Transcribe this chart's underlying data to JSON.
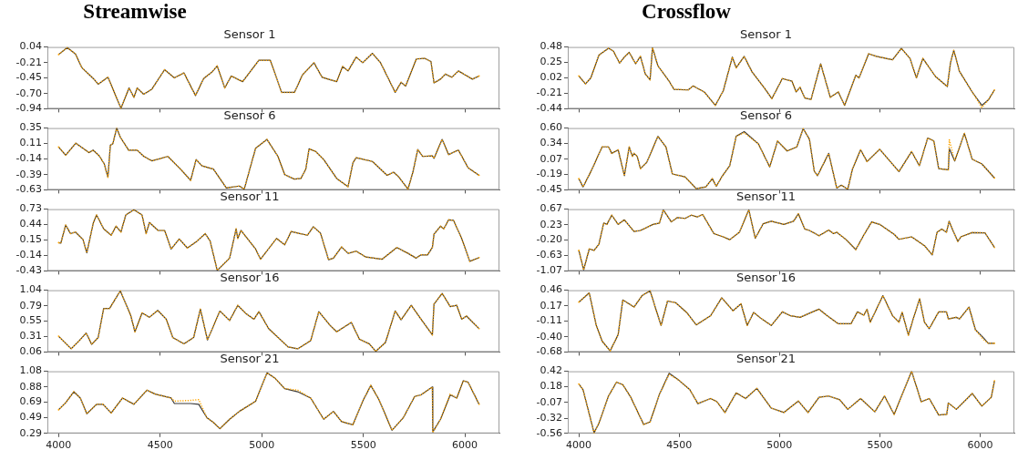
{
  "chart_data": [
    {
      "type": "line",
      "title": "Streamwise",
      "subtitle": "Sensor 1",
      "x": [
        4000,
        4043,
        4083,
        4115,
        4171,
        4195,
        4243,
        4307,
        4347,
        4371,
        4387,
        4419,
        4459,
        4522,
        4570,
        4617,
        4674,
        4714,
        4754,
        4781,
        4818,
        4850,
        4906,
        4986,
        5042,
        5098,
        5161,
        5201,
        5257,
        5297,
        5369,
        5398,
        5425,
        5465,
        5497,
        5545,
        5585,
        5657,
        5686,
        5708,
        5761,
        5801,
        5833,
        5848,
        5880,
        5904,
        5936,
        5968,
        6037,
        6070
      ],
      "series": [
        {
          "color": "#3a3a3a",
          "values": [
            -0.08,
            0.03,
            -0.07,
            -0.29,
            -0.46,
            -0.55,
            -0.44,
            -0.93,
            -0.61,
            -0.76,
            -0.61,
            -0.71,
            -0.63,
            -0.32,
            -0.45,
            -0.37,
            -0.73,
            -0.46,
            -0.36,
            -0.26,
            -0.61,
            -0.42,
            -0.51,
            -0.17,
            -0.17,
            -0.68,
            -0.68,
            -0.4,
            -0.21,
            -0.44,
            -0.51,
            -0.27,
            -0.34,
            -0.12,
            -0.21,
            -0.06,
            -0.21,
            -0.68,
            -0.52,
            -0.58,
            -0.15,
            -0.14,
            -0.19,
            -0.53,
            -0.47,
            -0.39,
            -0.44,
            -0.34,
            -0.47,
            -0.42
          ]
        },
        {
          "color": "#ffa500",
          "line_style": "dotted",
          "values": [
            -0.08,
            0.03,
            -0.07,
            -0.29,
            -0.46,
            -0.55,
            -0.44,
            -0.93,
            -0.61,
            -0.76,
            -0.61,
            -0.71,
            -0.63,
            -0.32,
            -0.45,
            -0.37,
            -0.73,
            -0.46,
            -0.36,
            -0.26,
            -0.61,
            -0.42,
            -0.51,
            -0.17,
            -0.17,
            -0.68,
            -0.68,
            -0.4,
            -0.21,
            -0.44,
            -0.51,
            -0.27,
            -0.34,
            -0.12,
            -0.21,
            -0.06,
            -0.21,
            -0.68,
            -0.52,
            -0.58,
            -0.15,
            -0.14,
            -0.19,
            -0.53,
            -0.47,
            -0.39,
            -0.44,
            -0.34,
            -0.47,
            -0.42
          ]
        }
      ],
      "xlim": [
        3945,
        6170
      ],
      "xticks": [
        4000,
        4500,
        5000,
        5500,
        6000
      ],
      "ylim": [
        -0.94,
        0.04
      ],
      "yticks": [
        0.04,
        -0.21,
        -0.45,
        {
          "value": -0.7,
          "label": "-0.70"
        },
        -0.94
      ],
      "tick_labels": "y"
    },
    {
      "type": "line",
      "title": "Sensor 6",
      "x": [
        4000,
        4035,
        4085,
        4150,
        4170,
        4200,
        4225,
        4243,
        4255,
        4267,
        4286,
        4305,
        4345,
        4387,
        4420,
        4459,
        4538,
        4600,
        4650,
        4677,
        4706,
        4762,
        4826,
        4890,
        4914,
        4950,
        4970,
        5026,
        5080,
        5113,
        5161,
        5193,
        5217,
        5233,
        5265,
        5305,
        5369,
        5425,
        5449,
        5465,
        5545,
        5617,
        5649,
        5673,
        5720,
        5744,
        5768,
        5792,
        5840,
        5848,
        5888,
        5920,
        5968,
        6016,
        6070
      ],
      "series": [
        {
          "color": "#3a3a3a",
          "values": [
            0.05,
            -0.08,
            0.11,
            -0.04,
            0.0,
            -0.09,
            -0.22,
            -0.43,
            0.08,
            0.1,
            0.35,
            0.2,
            0.0,
            0.0,
            -0.1,
            -0.17,
            -0.1,
            -0.3,
            -0.48,
            -0.15,
            -0.25,
            -0.3,
            -0.6,
            -0.57,
            -0.62,
            -0.2,
            0.03,
            0.17,
            -0.1,
            -0.39,
            -0.46,
            -0.45,
            -0.3,
            0.02,
            -0.02,
            -0.15,
            -0.45,
            -0.58,
            -0.2,
            -0.12,
            -0.18,
            -0.4,
            -0.35,
            -0.42,
            -0.62,
            -0.35,
            0.01,
            -0.1,
            -0.09,
            -0.13,
            0.17,
            -0.07,
            0.0,
            -0.28,
            -0.4
          ]
        },
        {
          "color": "#ffa500",
          "line_style": "dotted",
          "values": [
            0.05,
            -0.08,
            0.11,
            -0.04,
            0.0,
            -0.09,
            -0.22,
            -0.43,
            0.08,
            0.1,
            0.35,
            0.2,
            0.0,
            0.0,
            -0.1,
            -0.17,
            -0.1,
            -0.3,
            -0.48,
            -0.15,
            -0.25,
            -0.3,
            -0.6,
            -0.57,
            -0.62,
            -0.2,
            0.03,
            0.17,
            -0.1,
            -0.39,
            -0.46,
            -0.45,
            -0.3,
            0.02,
            -0.02,
            -0.15,
            -0.45,
            -0.58,
            -0.2,
            -0.12,
            -0.18,
            -0.4,
            -0.35,
            -0.42,
            -0.62,
            -0.35,
            0.01,
            -0.1,
            -0.09,
            -0.13,
            0.17,
            -0.07,
            0.0,
            -0.28,
            -0.4
          ]
        }
      ],
      "xlim": [
        3945,
        6170
      ],
      "xticks": [
        4000,
        4500,
        5000,
        5500,
        6000
      ],
      "ylim": [
        -0.63,
        0.35
      ],
      "yticks": [
        0.35,
        0.11,
        -0.14,
        -0.39,
        -0.63
      ],
      "tick_labels": "y"
    },
    {
      "type": "line",
      "title": "Sensor 11",
      "x": [
        4000,
        4011,
        4035,
        4059,
        4083,
        4120,
        4139,
        4171,
        4187,
        4222,
        4259,
        4283,
        4307,
        4331,
        4371,
        4411,
        4431,
        4447,
        4490,
        4522,
        4554,
        4594,
        4634,
        4682,
        4722,
        4746,
        4781,
        4842,
        4874,
        4882,
        4898,
        4970,
        4994,
        5073,
        5113,
        5145,
        5177,
        5225,
        5254,
        5289,
        5329,
        5353,
        5393,
        5425,
        5465,
        5513,
        5593,
        5665,
        5720,
        5760,
        5784,
        5816,
        5840,
        5848,
        5880,
        5896,
        5920,
        5944,
        5984,
        6024,
        6070
      ],
      "series": [
        {
          "color": "#3a3a3a",
          "values": [
            0.1,
            0.09,
            0.43,
            0.27,
            0.3,
            0.16,
            -0.09,
            0.47,
            0.62,
            0.36,
            0.24,
            0.41,
            0.3,
            0.62,
            0.72,
            0.62,
            0.27,
            0.48,
            0.33,
            0.33,
            -0.02,
            0.17,
            0.0,
            0.13,
            0.27,
            0.13,
            -0.42,
            -0.19,
            0.36,
            0.18,
            0.33,
            -0.02,
            -0.21,
            0.18,
            0.06,
            0.31,
            0.28,
            0.24,
            0.4,
            0.28,
            -0.22,
            -0.19,
            0.02,
            -0.1,
            -0.06,
            -0.17,
            -0.21,
            0.01,
            -0.1,
            -0.19,
            -0.13,
            -0.13,
            0.01,
            0.26,
            0.41,
            0.36,
            0.53,
            0.52,
            0.18,
            -0.25,
            -0.18
          ]
        },
        {
          "color": "#ffa500",
          "line_style": "dotted",
          "values": [
            0.1,
            0.09,
            0.43,
            0.27,
            0.3,
            0.16,
            -0.09,
            0.47,
            0.62,
            0.36,
            0.24,
            0.41,
            0.3,
            0.62,
            0.72,
            0.62,
            0.27,
            0.48,
            0.33,
            0.33,
            -0.02,
            0.17,
            0.0,
            0.13,
            0.27,
            0.13,
            -0.42,
            -0.19,
            0.36,
            0.18,
            0.33,
            -0.02,
            -0.21,
            0.18,
            0.06,
            0.31,
            0.28,
            0.24,
            0.4,
            0.28,
            -0.22,
            -0.19,
            0.02,
            -0.1,
            -0.06,
            -0.17,
            -0.21,
            0.01,
            -0.1,
            -0.19,
            -0.13,
            -0.13,
            0.01,
            0.26,
            0.41,
            0.36,
            0.53,
            0.52,
            0.18,
            -0.25,
            -0.18
          ]
        }
      ],
      "xlim": [
        3945,
        6170
      ],
      "xticks": [
        4000,
        4500,
        5000,
        5500,
        6000
      ],
      "ylim": [
        -0.43,
        0.73
      ],
      "yticks": [
        0.73,
        0.44,
        0.15,
        -0.14,
        -0.43
      ],
      "tick_labels": "y"
    },
    {
      "type": "line",
      "title": "Sensor 16",
      "x": [
        4000,
        4062,
        4099,
        4136,
        4163,
        4195,
        4222,
        4251,
        4304,
        4355,
        4376,
        4411,
        4447,
        4488,
        4530,
        4562,
        4617,
        4665,
        4698,
        4733,
        4770,
        4794,
        4842,
        4882,
        4922,
        4962,
        4986,
        5034,
        5130,
        5177,
        5241,
        5281,
        5337,
        5369,
        5441,
        5481,
        5529,
        5561,
        5609,
        5657,
        5686,
        5736,
        5784,
        5840,
        5848,
        5888,
        5928,
        5960,
        5984,
        6008,
        6070
      ],
      "series": [
        {
          "color": "#3a3a3a",
          "values": [
            0.31,
            0.11,
            0.23,
            0.36,
            0.18,
            0.29,
            0.75,
            0.75,
            1.03,
            0.64,
            0.38,
            0.68,
            0.61,
            0.72,
            0.58,
            0.29,
            0.19,
            0.29,
            0.74,
            0.25,
            0.53,
            0.71,
            0.56,
            0.8,
            0.67,
            0.58,
            0.7,
            0.43,
            0.14,
            0.11,
            0.24,
            0.7,
            0.48,
            0.38,
            0.53,
            0.26,
            0.19,
            0.07,
            0.21,
            0.71,
            0.57,
            0.8,
            0.58,
            0.33,
            0.82,
            0.99,
            0.78,
            0.8,
            0.58,
            0.63,
            0.43
          ]
        },
        {
          "color": "#ffa500",
          "line_style": "dotted",
          "values": [
            0.31,
            0.11,
            0.23,
            0.36,
            0.18,
            0.29,
            0.75,
            0.75,
            1.03,
            0.64,
            0.38,
            0.68,
            0.61,
            0.72,
            0.58,
            0.29,
            0.19,
            0.29,
            0.74,
            0.25,
            0.53,
            0.71,
            0.56,
            0.8,
            0.67,
            0.58,
            0.7,
            0.43,
            0.14,
            0.11,
            0.24,
            0.7,
            0.48,
            0.38,
            0.53,
            0.26,
            0.19,
            0.07,
            0.21,
            0.71,
            0.57,
            0.8,
            0.58,
            0.33,
            0.82,
            0.99,
            0.78,
            0.8,
            0.58,
            0.63,
            0.43
          ]
        }
      ],
      "xlim": [
        3945,
        6170
      ],
      "xticks": [
        4000,
        4500,
        5000,
        5500,
        6000
      ],
      "ylim": [
        0.06,
        1.04
      ],
      "yticks": [
        1.04,
        0.79,
        0.55,
        0.31,
        0.06
      ],
      "tick_labels": "y"
    },
    {
      "type": "line",
      "title": "Sensor 21",
      "x": [
        4000,
        4035,
        4075,
        4107,
        4139,
        4187,
        4219,
        4259,
        4315,
        4371,
        4435,
        4475,
        4554,
        4570,
        4649,
        4690,
        4730,
        4762,
        4794,
        4842,
        4890,
        4970,
        5026,
        5066,
        5113,
        5177,
        5241,
        5305,
        5353,
        5393,
        5449,
        5497,
        5537,
        5577,
        5641,
        5697,
        5753,
        5784,
        5840,
        5842,
        5880,
        5928,
        5960,
        5992,
        6016,
        6070
      ],
      "series": [
        {
          "color": "#3a3a3a",
          "values": [
            0.59,
            0.68,
            0.82,
            0.74,
            0.54,
            0.66,
            0.66,
            0.55,
            0.74,
            0.66,
            0.84,
            0.79,
            0.74,
            0.67,
            0.67,
            0.66,
            0.49,
            0.43,
            0.35,
            0.47,
            0.57,
            0.7,
            1.06,
            0.99,
            0.86,
            0.82,
            0.74,
            0.47,
            0.57,
            0.44,
            0.4,
            0.7,
            0.9,
            0.72,
            0.33,
            0.49,
            0.76,
            0.78,
            0.88,
            0.31,
            0.47,
            0.78,
            0.74,
            0.96,
            0.94,
            0.66
          ]
        },
        {
          "color": "#ffa500",
          "line_style": "dotted",
          "values": [
            0.59,
            0.68,
            0.82,
            0.74,
            0.54,
            0.66,
            0.66,
            0.55,
            0.74,
            0.66,
            0.84,
            0.79,
            0.74,
            0.7,
            0.71,
            0.72,
            0.49,
            0.43,
            0.35,
            0.47,
            0.57,
            0.7,
            1.06,
            0.99,
            0.86,
            0.84,
            0.74,
            0.47,
            0.57,
            0.44,
            0.4,
            0.7,
            0.9,
            0.72,
            0.33,
            0.49,
            0.76,
            0.78,
            0.88,
            0.3,
            0.47,
            0.79,
            0.74,
            0.96,
            0.94,
            0.66
          ]
        }
      ],
      "xlim": [
        3945,
        6170
      ],
      "xticks": [
        4000,
        4500,
        5000,
        5500,
        6000
      ],
      "ylim": [
        0.29,
        1.08
      ],
      "yticks": [
        1.08,
        0.88,
        0.69,
        0.49,
        0.29
      ]
    },
    {
      "type": "line",
      "title": "Crossflow",
      "subtitle": "Sensor 1",
      "x": [
        4000,
        4033,
        4060,
        4100,
        4148,
        4172,
        4203,
        4227,
        4251,
        4283,
        4307,
        4331,
        4355,
        4367,
        4394,
        4450,
        4474,
        4545,
        4569,
        4625,
        4680,
        4720,
        4765,
        4784,
        4824,
        4863,
        4927,
        4962,
        5014,
        5062,
        5083,
        5102,
        5126,
        5157,
        5205,
        5253,
        5293,
        5324,
        5380,
        5396,
        5444,
        5483,
        5563,
        5607,
        5650,
        5682,
        5714,
        5777,
        5836,
        5852,
        5868,
        5882,
        5896,
        5960,
        6008,
        6040,
        6071
      ],
      "series": [
        {
          "color": "#3a3a3a",
          "values": [
            0.05,
            -0.07,
            0.02,
            0.36,
            0.46,
            0.42,
            0.24,
            0.33,
            0.4,
            0.23,
            0.34,
            0.08,
            -0.01,
            0.47,
            0.2,
            -0.03,
            -0.15,
            -0.16,
            -0.1,
            -0.19,
            -0.39,
            -0.17,
            0.33,
            0.17,
            0.34,
            0.11,
            -0.14,
            -0.29,
            0.01,
            -0.03,
            -0.19,
            -0.12,
            -0.28,
            -0.3,
            0.23,
            -0.27,
            -0.19,
            -0.39,
            0.06,
            0.02,
            0.38,
            0.34,
            0.29,
            0.46,
            0.31,
            0.02,
            0.31,
            0.04,
            -0.11,
            0.25,
            0.43,
            0.28,
            0.12,
            -0.19,
            -0.39,
            -0.31,
            -0.16
          ]
        },
        {
          "color": "#ffa500",
          "line_style": "dotted",
          "values": [
            0.05,
            -0.07,
            0.02,
            0.36,
            0.46,
            0.42,
            0.24,
            0.33,
            0.4,
            0.23,
            0.34,
            0.08,
            -0.01,
            0.47,
            0.2,
            -0.03,
            -0.15,
            -0.16,
            -0.1,
            -0.19,
            -0.39,
            -0.17,
            0.33,
            0.17,
            0.34,
            0.11,
            -0.14,
            -0.29,
            0.01,
            -0.03,
            -0.19,
            -0.12,
            -0.28,
            -0.3,
            0.23,
            -0.27,
            -0.19,
            -0.39,
            0.06,
            0.02,
            0.38,
            0.34,
            0.29,
            0.46,
            0.31,
            0.02,
            0.31,
            0.04,
            -0.11,
            0.25,
            0.43,
            0.28,
            0.12,
            -0.19,
            -0.42,
            -0.31,
            -0.16
          ]
        }
      ],
      "xlim": [
        3945,
        6170
      ],
      "xticks": [
        4000,
        4500,
        5000,
        5500,
        6000
      ],
      "ylim": [
        -0.44,
        0.48
      ],
      "yticks": [
        0.48,
        0.25,
        0.02,
        -0.21,
        -0.44
      ],
      "tick_labels": "y"
    },
    {
      "type": "line",
      "title": "Sensor 6",
      "x": [
        4000,
        4021,
        4060,
        4116,
        4148,
        4164,
        4196,
        4227,
        4251,
        4267,
        4275,
        4291,
        4307,
        4339,
        4394,
        4434,
        4466,
        4529,
        4585,
        4633,
        4665,
        4685,
        4712,
        4752,
        4784,
        4824,
        4895,
        4951,
        4990,
        5038,
        5086,
        5118,
        5149,
        5173,
        5189,
        5245,
        5285,
        5308,
        5340,
        5364,
        5404,
        5436,
        5499,
        5595,
        5658,
        5697,
        5738,
        5769,
        5793,
        5841,
        5846,
        5873,
        5921,
        5960,
        6008,
        6040,
        6071
      ],
      "series": [
        {
          "color": "#3a3a3a",
          "values": [
            -0.26,
            -0.4,
            -0.14,
            0.28,
            0.28,
            0.17,
            0.23,
            -0.21,
            0.28,
            0.12,
            0.17,
            0.12,
            -0.09,
            0.02,
            0.46,
            0.28,
            -0.18,
            -0.23,
            -0.43,
            -0.4,
            -0.26,
            -0.39,
            -0.23,
            -0.04,
            0.46,
            0.54,
            0.33,
            -0.06,
            0.38,
            0.21,
            0.28,
            0.59,
            0.41,
            -0.13,
            -0.21,
            0.17,
            -0.42,
            -0.37,
            -0.44,
            -0.09,
            0.23,
            0.03,
            0.24,
            -0.14,
            0.2,
            -0.04,
            0.43,
            0.38,
            -0.09,
            -0.11,
            0.25,
            0.04,
            0.51,
            0.07,
            -0.01,
            -0.13,
            -0.25
          ]
        },
        {
          "color": "#ffa500",
          "line_style": "dotted",
          "values": [
            -0.26,
            -0.4,
            -0.14,
            0.28,
            0.28,
            0.17,
            0.23,
            -0.21,
            0.28,
            0.12,
            0.17,
            0.12,
            -0.09,
            0.02,
            0.46,
            0.28,
            -0.18,
            -0.23,
            -0.43,
            -0.4,
            -0.26,
            -0.39,
            -0.23,
            -0.04,
            0.46,
            0.52,
            0.33,
            -0.06,
            0.38,
            0.21,
            0.28,
            0.59,
            0.41,
            -0.13,
            -0.21,
            0.17,
            -0.42,
            -0.37,
            -0.44,
            -0.09,
            0.23,
            0.03,
            0.24,
            -0.14,
            0.2,
            -0.04,
            0.43,
            0.38,
            -0.09,
            -0.11,
            0.4,
            0.04,
            0.51,
            0.07,
            -0.01,
            -0.13,
            -0.25
          ]
        }
      ],
      "xlim": [
        3945,
        6170
      ],
      "xticks": [
        4000,
        4500,
        5000,
        5500,
        6000
      ],
      "ylim": [
        -0.45,
        0.6
      ],
      "yticks": [
        {
          "value": 0.6,
          "label": "0.60"
        },
        0.34,
        0.07,
        -0.19,
        -0.45
      ],
      "tick_labels": "y"
    },
    {
      "type": "line",
      "title": "Sensor 11",
      "x": [
        4000,
        4024,
        4052,
        4076,
        4100,
        4124,
        4140,
        4164,
        4196,
        4227,
        4275,
        4307,
        4370,
        4402,
        4421,
        4461,
        4490,
        4529,
        4561,
        4590,
        4617,
        4673,
        4720,
        4752,
        4800,
        4847,
        4879,
        4919,
        4959,
        5022,
        5070,
        5094,
        5126,
        5149,
        5197,
        5245,
        5269,
        5285,
        5332,
        5380,
        5420,
        5459,
        5499,
        5571,
        5595,
        5658,
        5722,
        5761,
        5785,
        5808,
        5832,
        5845,
        5864,
        5888,
        5904,
        5960,
        6024,
        6071
      ],
      "series": [
        {
          "color": "#3a3a3a",
          "values": [
            -0.49,
            -1.04,
            -0.45,
            -0.49,
            -0.32,
            0.28,
            0.24,
            0.5,
            0.24,
            0.37,
            0.04,
            0.07,
            0.24,
            0.28,
            0.65,
            0.31,
            0.43,
            0.41,
            0.5,
            0.45,
            0.52,
            -0.02,
            -0.11,
            -0.19,
            0.02,
            0.65,
            -0.15,
            0.26,
            0.33,
            0.24,
            0.33,
            0.54,
            0.11,
            0.07,
            -0.08,
            0.08,
            -0.02,
            0.02,
            -0.19,
            -0.47,
            -0.06,
            0.31,
            0.24,
            -0.04,
            -0.18,
            -0.11,
            -0.36,
            -0.62,
            0.02,
            0.11,
            0.02,
            0.33,
            0.07,
            -0.24,
            -0.11,
            0.01,
            0.0,
            -0.41
          ]
        },
        {
          "color": "#ffa500",
          "line_style": "dotted",
          "values": [
            -0.49,
            -1.04,
            -0.45,
            -0.49,
            -0.32,
            0.28,
            0.24,
            0.5,
            0.24,
            0.37,
            0.04,
            0.07,
            0.24,
            0.28,
            0.65,
            0.31,
            0.43,
            0.41,
            0.5,
            0.45,
            0.52,
            -0.02,
            -0.11,
            -0.19,
            0.02,
            0.65,
            -0.15,
            0.26,
            0.33,
            0.24,
            0.33,
            0.54,
            0.11,
            0.07,
            -0.08,
            0.08,
            -0.02,
            0.02,
            -0.19,
            -0.47,
            -0.06,
            0.31,
            0.24,
            -0.04,
            -0.18,
            -0.11,
            -0.36,
            -0.62,
            0.02,
            0.11,
            0.02,
            0.33,
            0.07,
            -0.24,
            -0.11,
            0.01,
            0.0,
            -0.41
          ]
        }
      ],
      "xlim": [
        3945,
        6170
      ],
      "xticks": [
        4000,
        4500,
        5000,
        5500,
        6000
      ],
      "ylim": [
        -1.07,
        0.67
      ],
      "yticks": [
        0.67,
        0.23,
        {
          "value": -0.2,
          "label": "-0.20"
        },
        -0.63,
        -1.07
      ],
      "tick_labels": "y"
    },
    {
      "type": "line",
      "title": "Sensor 16",
      "x": [
        4000,
        4052,
        4087,
        4116,
        4156,
        4196,
        4219,
        4275,
        4315,
        4355,
        4394,
        4410,
        4442,
        4482,
        4537,
        4585,
        4657,
        4712,
        4768,
        4808,
        4839,
        4871,
        4911,
        4959,
        5014,
        5054,
        5102,
        5197,
        5237,
        5293,
        5356,
        5388,
        5420,
        5436,
        5452,
        5515,
        5563,
        5595,
        5611,
        5642,
        5666,
        5698,
        5722,
        5746,
        5793,
        5832,
        5841,
        5880,
        5897,
        5944,
        5976,
        6016,
        6040,
        6071
      ],
      "series": [
        {
          "color": "#3a3a3a",
          "values": [
            0.24,
            0.41,
            -0.19,
            -0.48,
            -0.66,
            -0.36,
            0.28,
            0.15,
            0.36,
            0.45,
            -0.01,
            -0.19,
            0.26,
            0.23,
            0.05,
            -0.18,
            -0.01,
            0.32,
            0.08,
            0.21,
            -0.19,
            0.05,
            -0.07,
            -0.19,
            0.06,
            -0.01,
            -0.04,
            0.11,
            -0.01,
            -0.16,
            -0.16,
            0.06,
            0.0,
            0.11,
            -0.13,
            0.36,
            -0.01,
            -0.13,
            0.05,
            -0.37,
            -0.07,
            0.3,
            -0.13,
            -0.25,
            0.06,
            0.06,
            -0.07,
            -0.04,
            -0.07,
            0.15,
            -0.27,
            -0.42,
            -0.52,
            -0.52
          ]
        },
        {
          "color": "#ffa500",
          "line_style": "dotted",
          "values": [
            0.24,
            0.41,
            -0.19,
            -0.48,
            -0.66,
            -0.36,
            0.28,
            0.15,
            0.36,
            0.45,
            -0.01,
            -0.19,
            0.26,
            0.23,
            0.05,
            -0.18,
            -0.01,
            0.32,
            0.08,
            0.21,
            -0.19,
            0.05,
            -0.07,
            -0.19,
            0.06,
            -0.01,
            -0.04,
            0.11,
            -0.01,
            -0.16,
            -0.16,
            0.06,
            0.0,
            0.11,
            -0.13,
            0.36,
            -0.01,
            -0.13,
            0.05,
            -0.37,
            -0.07,
            0.3,
            -0.13,
            -0.25,
            0.06,
            0.06,
            -0.07,
            -0.04,
            -0.07,
            0.15,
            -0.27,
            -0.45,
            -0.52,
            -0.52
          ]
        }
      ],
      "xlim": [
        3945,
        6170
      ],
      "xticks": [
        4000,
        4500,
        5000,
        5500,
        6000
      ],
      "ylim": [
        -0.68,
        0.46
      ],
      "yticks": [
        0.46,
        0.17,
        -0.11,
        {
          "value": -0.4,
          "label": "-0.40"
        },
        -0.68
      ],
      "tick_labels": "y"
    },
    {
      "type": "line",
      "title": "Sensor 21",
      "x": [
        4000,
        4021,
        4076,
        4100,
        4148,
        4188,
        4219,
        4259,
        4323,
        4355,
        4402,
        4450,
        4498,
        4553,
        4593,
        4657,
        4688,
        4728,
        4784,
        4831,
        4887,
        4958,
        5022,
        5094,
        5142,
        5197,
        5245,
        5300,
        5340,
        5404,
        5475,
        5523,
        5571,
        5658,
        5706,
        5746,
        5793,
        5833,
        5841,
        5881,
        5960,
        6008,
        6055,
        6071
      ],
      "series": [
        {
          "color": "#3a3a3a",
          "values": [
            0.22,
            0.13,
            -0.55,
            -0.4,
            0.03,
            0.25,
            0.21,
            0.01,
            -0.42,
            -0.38,
            0.06,
            0.39,
            0.28,
            0.13,
            -0.09,
            -0.01,
            -0.06,
            -0.23,
            0.08,
            -0.01,
            0.15,
            -0.16,
            -0.23,
            -0.05,
            -0.23,
            0.01,
            0.03,
            -0.03,
            -0.18,
            -0.01,
            -0.22,
            0.03,
            -0.26,
            0.42,
            -0.06,
            -0.01,
            -0.27,
            -0.26,
            -0.08,
            -0.18,
            0.07,
            -0.13,
            0.01,
            0.27
          ]
        },
        {
          "color": "#ffa500",
          "line_style": "dotted",
          "values": [
            0.22,
            0.13,
            -0.55,
            -0.4,
            0.03,
            0.25,
            0.21,
            0.01,
            -0.42,
            -0.38,
            0.06,
            0.37,
            0.28,
            0.13,
            -0.09,
            -0.01,
            -0.06,
            -0.23,
            0.08,
            -0.01,
            0.15,
            -0.16,
            -0.23,
            -0.05,
            -0.23,
            0.01,
            0.03,
            -0.03,
            -0.18,
            -0.01,
            -0.22,
            0.03,
            -0.26,
            0.42,
            -0.06,
            -0.01,
            -0.27,
            -0.26,
            -0.08,
            -0.18,
            0.07,
            -0.13,
            0.01,
            0.27
          ]
        }
      ],
      "xlim": [
        3945,
        6170
      ],
      "xticks": [
        4000,
        4500,
        5000,
        5500,
        6000
      ],
      "ylim": [
        -0.56,
        0.42
      ],
      "yticks": [
        0.42,
        0.18,
        -0.07,
        -0.32,
        -0.56
      ]
    }
  ]
}
